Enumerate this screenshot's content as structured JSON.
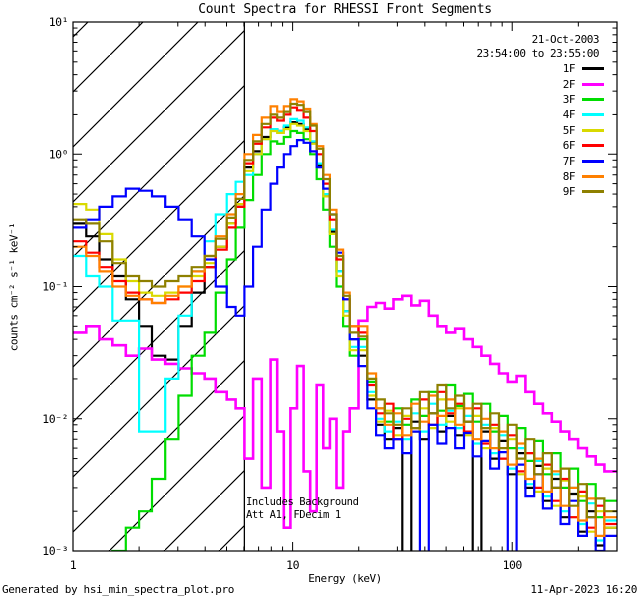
{
  "title": "Count Spectra for RHESSI Front Segments",
  "header": {
    "date": "21-Oct-2003",
    "time_range": "23:54:00 to 23:55:00"
  },
  "annotations": {
    "line1": "Includes Background",
    "line2": "Att A1, FDecim 1"
  },
  "footer": {
    "left": "Generated by hsi_min_spectra_plot.pro",
    "right": "11-Apr-2023 16:20"
  },
  "chart_data": {
    "type": "line",
    "mode": "step-histogram",
    "x_scale": "log",
    "y_scale": "log",
    "xlabel": "Energy (keV)",
    "ylabel": "counts cm⁻² s⁻¹ keV⁻¹",
    "xlim": [
      1,
      300
    ],
    "ylim": [
      0.001,
      10
    ],
    "x_major_ticks": [
      {
        "value": 1,
        "label": "1"
      },
      {
        "value": 10,
        "label": "10"
      },
      {
        "value": 100,
        "label": "100"
      }
    ],
    "y_major_ticks": [
      {
        "value": 10,
        "label": "10¹"
      },
      {
        "value": 1,
        "label": "10⁰"
      },
      {
        "value": 0.1,
        "label": "10⁻¹"
      },
      {
        "value": 0.01,
        "label": "10⁻²"
      },
      {
        "value": 0.001,
        "label": "10⁻³"
      }
    ],
    "hatched_region_keV": [
      1.0,
      6.03
    ],
    "attenuation_line_keV": 6.03,
    "bin_edges_keV": [
      1.0,
      1.15,
      1.32,
      1.51,
      1.74,
      2.0,
      2.29,
      2.63,
      3.02,
      3.47,
      3.98,
      4.47,
      5.01,
      5.5,
      6.03,
      6.61,
      7.24,
      7.94,
      8.51,
      9.12,
      9.77,
      10.47,
      11.22,
      12.02,
      12.88,
      13.8,
      14.79,
      15.85,
      16.98,
      18.2,
      19.95,
      21.9,
      24.0,
      26.3,
      28.8,
      31.6,
      34.7,
      38.0,
      41.7,
      45.7,
      50.1,
      55.0,
      60.3,
      66.1,
      72.4,
      79.4,
      87.1,
      95.5,
      104.7,
      114.8,
      125.9,
      138.0,
      151.4,
      166.0,
      182.0,
      199.5,
      218.8,
      239.9,
      263.0,
      300.0
    ],
    "series": [
      {
        "name": "1F",
        "color": "#000000",
        "width": 2.2,
        "values": [
          0.3,
          0.24,
          0.16,
          0.12,
          0.08,
          0.05,
          0.03,
          0.028,
          0.05,
          0.09,
          0.14,
          0.2,
          0.3,
          0.42,
          0.8,
          1.05,
          1.35,
          1.55,
          1.5,
          1.6,
          1.75,
          1.7,
          1.55,
          1.22,
          0.82,
          0.5,
          0.26,
          0.13,
          0.065,
          0.04,
          0.03,
          0.014,
          0.009,
          0.007,
          0.0085,
          0.0006,
          0.0095,
          0.007,
          0.011,
          0.008,
          0.0105,
          0.0075,
          0.0095,
          0.0008,
          0.008,
          0.005,
          0.0068,
          0.0038,
          0.0055,
          0.003,
          0.0044,
          0.0024,
          0.0035,
          0.0018,
          0.0027,
          0.0014,
          0.002,
          0.0011,
          0.0015
        ]
      },
      {
        "name": "2F",
        "color": "#FF00FF",
        "width": 2.6,
        "values": [
          0.045,
          0.05,
          0.04,
          0.036,
          0.03,
          0.034,
          0.028,
          0.026,
          0.024,
          0.022,
          0.02,
          0.016,
          0.014,
          0.012,
          0.005,
          0.02,
          0.003,
          0.028,
          0.008,
          0.0015,
          0.012,
          0.025,
          0.004,
          0.002,
          0.018,
          0.006,
          0.01,
          0.003,
          0.008,
          0.012,
          0.055,
          0.07,
          0.075,
          0.068,
          0.08,
          0.085,
          0.072,
          0.078,
          0.06,
          0.05,
          0.045,
          0.048,
          0.04,
          0.035,
          0.03,
          0.026,
          0.022,
          0.019,
          0.021,
          0.016,
          0.013,
          0.011,
          0.0095,
          0.008,
          0.007,
          0.006,
          0.0052,
          0.0045,
          0.004
        ]
      },
      {
        "name": "3F",
        "color": "#00DD00",
        "width": 2.2,
        "values": [
          0.0005,
          0.0006,
          0.0008,
          0.001,
          0.0015,
          0.002,
          0.0035,
          0.007,
          0.015,
          0.03,
          0.045,
          0.09,
          0.16,
          0.28,
          0.45,
          0.7,
          1.0,
          1.25,
          1.2,
          1.35,
          1.5,
          1.45,
          1.3,
          1.0,
          0.65,
          0.38,
          0.2,
          0.1,
          0.05,
          0.03,
          0.04,
          0.019,
          0.012,
          0.0095,
          0.012,
          0.009,
          0.014,
          0.0105,
          0.016,
          0.0115,
          0.018,
          0.0125,
          0.0155,
          0.0095,
          0.013,
          0.008,
          0.0105,
          0.006,
          0.0085,
          0.0048,
          0.0068,
          0.0038,
          0.0055,
          0.003,
          0.0042,
          0.0024,
          0.0032,
          0.0018,
          0.0024
        ]
      },
      {
        "name": "4F",
        "color": "#00FFFF",
        "width": 2.2,
        "values": [
          0.17,
          0.12,
          0.1,
          0.055,
          0.055,
          0.008,
          0.008,
          0.02,
          0.06,
          0.13,
          0.22,
          0.35,
          0.5,
          0.62,
          0.7,
          1.0,
          1.3,
          1.55,
          1.5,
          1.65,
          1.85,
          1.8,
          1.6,
          1.25,
          0.85,
          0.5,
          0.27,
          0.13,
          0.065,
          0.035,
          0.035,
          0.016,
          0.01,
          0.008,
          0.0095,
          0.007,
          0.011,
          0.008,
          0.013,
          0.009,
          0.0115,
          0.0085,
          0.0105,
          0.0065,
          0.009,
          0.0055,
          0.0075,
          0.0042,
          0.006,
          0.0032,
          0.0048,
          0.0026,
          0.0038,
          0.002,
          0.003,
          0.0016,
          0.0023,
          0.0012,
          0.0017
        ]
      },
      {
        "name": "5F",
        "color": "#D9D900",
        "width": 2.2,
        "values": [
          0.42,
          0.38,
          0.25,
          0.16,
          0.11,
          0.09,
          0.085,
          0.09,
          0.1,
          0.12,
          0.15,
          0.2,
          0.3,
          0.42,
          0.75,
          1.0,
          1.3,
          1.5,
          1.45,
          1.55,
          1.7,
          1.65,
          1.5,
          1.2,
          0.8,
          0.48,
          0.25,
          0.12,
          0.06,
          0.033,
          0.033,
          0.015,
          0.0095,
          0.0115,
          0.0075,
          0.0105,
          0.008,
          0.012,
          0.0085,
          0.014,
          0.0095,
          0.012,
          0.0075,
          0.0105,
          0.006,
          0.0085,
          0.005,
          0.007,
          0.0038,
          0.0055,
          0.0028,
          0.0042,
          0.0022,
          0.0034,
          0.0018,
          0.0026,
          0.0014,
          0.002,
          0.0015
        ]
      },
      {
        "name": "6F",
        "color": "#FF0000",
        "width": 2.2,
        "values": [
          0.22,
          0.18,
          0.14,
          0.11,
          0.09,
          0.08,
          0.075,
          0.08,
          0.09,
          0.11,
          0.14,
          0.19,
          0.28,
          0.4,
          0.85,
          1.2,
          1.6,
          1.9,
          1.8,
          2.0,
          2.25,
          2.15,
          1.9,
          1.5,
          1.0,
          0.6,
          0.32,
          0.16,
          0.08,
          0.05,
          0.045,
          0.018,
          0.011,
          0.013,
          0.007,
          0.01,
          0.0085,
          0.014,
          0.009,
          0.016,
          0.011,
          0.013,
          0.008,
          0.012,
          0.0065,
          0.009,
          0.005,
          0.0075,
          0.004,
          0.0055,
          0.003,
          0.0045,
          0.0024,
          0.0035,
          0.0018,
          0.0028,
          0.0015,
          0.0022,
          0.0016
        ]
      },
      {
        "name": "7F",
        "color": "#0000FF",
        "width": 2.2,
        "values": [
          0.28,
          0.32,
          0.4,
          0.48,
          0.55,
          0.53,
          0.48,
          0.4,
          0.32,
          0.24,
          0.16,
          0.1,
          0.07,
          0.06,
          0.1,
          0.2,
          0.38,
          0.6,
          0.8,
          1.0,
          1.15,
          1.28,
          1.22,
          1.05,
          0.8,
          0.55,
          0.35,
          0.18,
          0.08,
          0.04,
          0.025,
          0.012,
          0.0075,
          0.006,
          0.007,
          0.0055,
          0.008,
          0.0006,
          0.009,
          0.0065,
          0.0085,
          0.006,
          0.0078,
          0.0052,
          0.0068,
          0.0042,
          0.0056,
          0.0005,
          0.0045,
          0.0026,
          0.0038,
          0.0021,
          0.003,
          0.0016,
          0.0024,
          0.0013,
          0.0018,
          0.001,
          0.0013
        ]
      },
      {
        "name": "8F",
        "color": "#FF8000",
        "width": 2.2,
        "values": [
          0.2,
          0.17,
          0.13,
          0.1,
          0.085,
          0.08,
          0.075,
          0.085,
          0.1,
          0.13,
          0.17,
          0.24,
          0.35,
          0.5,
          1.0,
          1.4,
          1.9,
          2.3,
          2.1,
          2.3,
          2.6,
          2.5,
          2.2,
          1.7,
          1.15,
          0.7,
          0.38,
          0.19,
          0.09,
          0.05,
          0.05,
          0.022,
          0.012,
          0.009,
          0.011,
          0.0075,
          0.013,
          0.0095,
          0.015,
          0.0105,
          0.014,
          0.009,
          0.012,
          0.007,
          0.01,
          0.006,
          0.008,
          0.0045,
          0.0065,
          0.0035,
          0.005,
          0.0028,
          0.004,
          0.0022,
          0.003,
          0.0017,
          0.0025,
          0.0013,
          0.0018
        ]
      },
      {
        "name": "9F",
        "color": "#8E8000",
        "width": 2.2,
        "values": [
          0.32,
          0.3,
          0.22,
          0.15,
          0.12,
          0.11,
          0.1,
          0.11,
          0.12,
          0.14,
          0.17,
          0.23,
          0.33,
          0.46,
          0.9,
          1.25,
          1.7,
          2.0,
          1.9,
          2.1,
          2.4,
          2.35,
          2.1,
          1.65,
          1.1,
          0.65,
          0.35,
          0.17,
          0.085,
          0.045,
          0.042,
          0.02,
          0.014,
          0.011,
          0.009,
          0.012,
          0.0085,
          0.016,
          0.011,
          0.018,
          0.012,
          0.015,
          0.0095,
          0.013,
          0.0085,
          0.011,
          0.006,
          0.009,
          0.005,
          0.007,
          0.0038,
          0.0055,
          0.003,
          0.0042,
          0.0022,
          0.0032,
          0.0018,
          0.0025,
          0.002
        ]
      }
    ]
  }
}
